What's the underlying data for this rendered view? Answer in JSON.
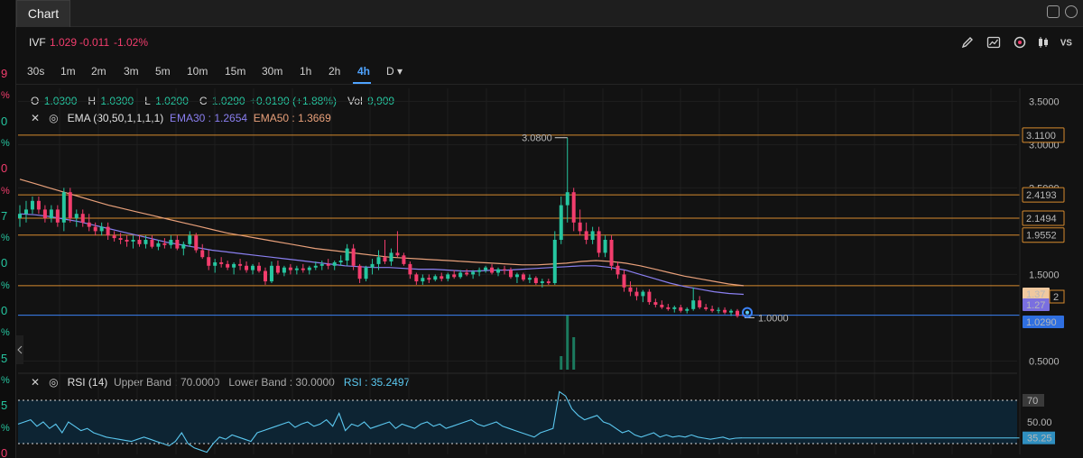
{
  "left_strip": {
    "values": [
      {
        "v": "9",
        "color": "#f23d6d"
      },
      {
        "v": "%",
        "color": "#f23d6d"
      },
      {
        "v": "0",
        "color": "#26c6a0"
      },
      {
        "v": "%",
        "color": "#26c6a0"
      },
      {
        "v": "0",
        "color": "#f23d6d"
      },
      {
        "v": "%",
        "color": "#f23d6d"
      },
      {
        "v": "7",
        "color": "#26c6a0"
      },
      {
        "v": "%",
        "color": "#26c6a0"
      },
      {
        "v": "0",
        "color": "#26c6a0"
      },
      {
        "v": "%",
        "color": "#26c6a0"
      },
      {
        "v": "0",
        "color": "#26c6a0"
      },
      {
        "v": "%",
        "color": "#26c6a0"
      },
      {
        "v": "5",
        "color": "#26c6a0"
      },
      {
        "v": "%",
        "color": "#26c6a0"
      },
      {
        "v": "5",
        "color": "#26c6a0"
      },
      {
        "v": "%",
        "color": "#26c6a0"
      },
      {
        "v": "0",
        "color": "#f23d6d"
      }
    ]
  },
  "header": {
    "title": "Chart"
  },
  "symbol": {
    "ticker": "IVF",
    "price": "1.029",
    "change": "-0.011",
    "change_pct": "-1.02%"
  },
  "timeframes": [
    "30s",
    "1m",
    "2m",
    "3m",
    "5m",
    "10m",
    "15m",
    "30m",
    "1h",
    "2h",
    "4h",
    "D"
  ],
  "active_timeframe": "4h",
  "ohlc": {
    "o_label": "O",
    "o": "1.0300",
    "h_label": "H",
    "h": "1.0300",
    "l_label": "L",
    "l": "1.0200",
    "c_label": "C",
    "c": "1.0290",
    "change": "+0.0190 (+1.88%)",
    "vol_label": "Vol",
    "vol": "9,909"
  },
  "ema_legend": {
    "name": "EMA (30,50,1,1,1,1)",
    "ema30": "EMA30 : 1.2654",
    "ema50": "EMA50 : 1.3669"
  },
  "rsi_legend": {
    "name": "RSI (14)",
    "upper": "Upper Band : 70.0000",
    "lower": "Lower Band : 30.0000",
    "value": "RSI : 35.2497"
  },
  "colors": {
    "up": "#26c6a0",
    "down": "#f23d6d",
    "ema30": "#8a7ff0",
    "ema50": "#e8a07a",
    "hline": "#d68a2e",
    "blue": "#3b82f6",
    "rsi": "#5bc8f0"
  },
  "chart_data": [
    {
      "type": "candlestick",
      "title": "IVF 4h",
      "ylim": [
        0.4,
        3.65
      ],
      "y_ticks": [
        "3.5000",
        "3.0000",
        "2.5000",
        "1.5000",
        "0.5000"
      ],
      "y_tick_values": [
        3.5,
        3.0,
        2.5,
        1.5,
        0.5
      ],
      "annotations": [
        {
          "text": "3.0800",
          "value": 3.08,
          "bar_index": 87
        },
        {
          "text": "1.0000",
          "value": 1.0,
          "bar_index": 115
        }
      ],
      "horizontal_lines": [
        {
          "label": "3.1100",
          "value": 3.11,
          "color": "#d68a2e"
        },
        {
          "label": "2.4193",
          "value": 2.4193,
          "color": "#d68a2e"
        },
        {
          "label": "2.1494",
          "value": 2.1494,
          "color": "#d68a2e"
        },
        {
          "label": "1.9552",
          "value": 1.9552,
          "color": "#d68a2e"
        },
        {
          "label": "1.37",
          "value": 1.37,
          "color": "#d68a2e"
        },
        {
          "label": "1.0290",
          "value": 1.029,
          "color": "#3b82f6"
        }
      ],
      "price_tags": [
        {
          "label": "1.37",
          "value": 1.37,
          "color": "#d68a2e"
        },
        {
          "label": "1.27",
          "value": 1.27,
          "color": "#8a7ff0"
        },
        {
          "label": "1.0290",
          "value": 1.029,
          "color": "#3b82f6"
        }
      ],
      "candles": [
        [
          2.15,
          2.3,
          2.05,
          2.2
        ],
        [
          2.2,
          2.35,
          2.1,
          2.25
        ],
        [
          2.25,
          2.4,
          2.2,
          2.35
        ],
        [
          2.35,
          2.4,
          2.2,
          2.25
        ],
        [
          2.25,
          2.3,
          2.1,
          2.15
        ],
        [
          2.15,
          2.3,
          2.1,
          2.25
        ],
        [
          2.25,
          2.3,
          2.05,
          2.1
        ],
        [
          2.1,
          2.5,
          2.0,
          2.45
        ],
        [
          2.45,
          2.5,
          2.1,
          2.15
        ],
        [
          2.15,
          2.25,
          2.05,
          2.2
        ],
        [
          2.2,
          2.25,
          2.05,
          2.1
        ],
        [
          2.1,
          2.2,
          2.0,
          2.05
        ],
        [
          2.05,
          2.1,
          1.95,
          2.0
        ],
        [
          2.0,
          2.1,
          1.95,
          2.05
        ],
        [
          2.05,
          2.1,
          1.9,
          1.95
        ],
        [
          1.95,
          2.0,
          1.88,
          1.92
        ],
        [
          1.92,
          1.98,
          1.85,
          1.9
        ],
        [
          1.9,
          1.95,
          1.82,
          1.88
        ],
        [
          1.88,
          1.95,
          1.8,
          1.9
        ],
        [
          1.9,
          1.95,
          1.82,
          1.85
        ],
        [
          1.85,
          1.95,
          1.8,
          1.9
        ],
        [
          1.9,
          1.95,
          1.8,
          1.82
        ],
        [
          1.82,
          1.9,
          1.78,
          1.86
        ],
        [
          1.86,
          1.92,
          1.8,
          1.84
        ],
        [
          1.84,
          1.95,
          1.8,
          1.9
        ],
        [
          1.9,
          1.95,
          1.78,
          1.8
        ],
        [
          1.8,
          1.88,
          1.72,
          1.85
        ],
        [
          1.85,
          2.0,
          1.82,
          1.95
        ],
        [
          1.95,
          1.98,
          1.75,
          1.78
        ],
        [
          1.78,
          1.85,
          1.68,
          1.7
        ],
        [
          1.7,
          1.78,
          1.55,
          1.6
        ],
        [
          1.6,
          1.68,
          1.52,
          1.64
        ],
        [
          1.64,
          1.7,
          1.58,
          1.62
        ],
        [
          1.62,
          1.66,
          1.55,
          1.58
        ],
        [
          1.58,
          1.64,
          1.5,
          1.62
        ],
        [
          1.62,
          1.68,
          1.55,
          1.6
        ],
        [
          1.6,
          1.65,
          1.52,
          1.55
        ],
        [
          1.55,
          1.62,
          1.5,
          1.6
        ],
        [
          1.6,
          1.64,
          1.52,
          1.54
        ],
        [
          1.54,
          1.58,
          1.38,
          1.42
        ],
        [
          1.42,
          1.65,
          1.4,
          1.6
        ],
        [
          1.6,
          1.66,
          1.5,
          1.52
        ],
        [
          1.52,
          1.6,
          1.48,
          1.58
        ],
        [
          1.58,
          1.62,
          1.5,
          1.55
        ],
        [
          1.55,
          1.6,
          1.5,
          1.57
        ],
        [
          1.57,
          1.62,
          1.52,
          1.55
        ],
        [
          1.55,
          1.6,
          1.5,
          1.58
        ],
        [
          1.58,
          1.65,
          1.55,
          1.6
        ],
        [
          1.6,
          1.66,
          1.55,
          1.62
        ],
        [
          1.62,
          1.68,
          1.56,
          1.6
        ],
        [
          1.6,
          1.66,
          1.55,
          1.64
        ],
        [
          1.64,
          1.72,
          1.6,
          1.66
        ],
        [
          1.66,
          1.85,
          1.6,
          1.8
        ],
        [
          1.8,
          1.85,
          1.55,
          1.6
        ],
        [
          1.6,
          1.62,
          1.4,
          1.45
        ],
        [
          1.45,
          1.6,
          1.42,
          1.58
        ],
        [
          1.58,
          1.68,
          1.5,
          1.62
        ],
        [
          1.62,
          1.78,
          1.55,
          1.7
        ],
        [
          1.7,
          1.9,
          1.62,
          1.65
        ],
        [
          1.65,
          1.8,
          1.6,
          1.75
        ],
        [
          1.75,
          2.0,
          1.7,
          1.72
        ],
        [
          1.72,
          1.75,
          1.6,
          1.62
        ],
        [
          1.62,
          1.65,
          1.45,
          1.5
        ],
        [
          1.5,
          1.52,
          1.38,
          1.42
        ],
        [
          1.42,
          1.5,
          1.38,
          1.46
        ],
        [
          1.46,
          1.5,
          1.4,
          1.44
        ],
        [
          1.44,
          1.5,
          1.42,
          1.48
        ],
        [
          1.48,
          1.52,
          1.42,
          1.45
        ],
        [
          1.45,
          1.52,
          1.42,
          1.5
        ],
        [
          1.5,
          1.55,
          1.45,
          1.47
        ],
        [
          1.47,
          1.55,
          1.45,
          1.52
        ],
        [
          1.52,
          1.56,
          1.48,
          1.5
        ],
        [
          1.5,
          1.55,
          1.45,
          1.53
        ],
        [
          1.53,
          1.58,
          1.48,
          1.55
        ],
        [
          1.55,
          1.6,
          1.52,
          1.58
        ],
        [
          1.58,
          1.62,
          1.5,
          1.52
        ],
        [
          1.52,
          1.58,
          1.48,
          1.56
        ],
        [
          1.56,
          1.6,
          1.5,
          1.55
        ],
        [
          1.55,
          1.58,
          1.45,
          1.47
        ],
        [
          1.47,
          1.52,
          1.4,
          1.5
        ],
        [
          1.5,
          1.52,
          1.42,
          1.44
        ],
        [
          1.44,
          1.5,
          1.4,
          1.46
        ],
        [
          1.46,
          1.48,
          1.38,
          1.4
        ],
        [
          1.4,
          1.45,
          1.35,
          1.42
        ],
        [
          1.42,
          1.45,
          1.38,
          1.4
        ],
        [
          1.4,
          2.0,
          1.38,
          1.9
        ],
        [
          1.9,
          2.4,
          1.85,
          2.3
        ],
        [
          2.3,
          3.08,
          2.1,
          2.45
        ],
        [
          2.45,
          2.5,
          2.0,
          2.1
        ],
        [
          2.1,
          2.25,
          1.95,
          2.0
        ],
        [
          2.0,
          2.1,
          1.85,
          1.9
        ],
        [
          1.9,
          2.05,
          1.85,
          2.0
        ],
        [
          2.0,
          2.05,
          1.7,
          1.75
        ],
        [
          1.75,
          1.95,
          1.7,
          1.9
        ],
        [
          1.9,
          1.95,
          1.55,
          1.6
        ],
        [
          1.6,
          1.65,
          1.45,
          1.5
        ],
        [
          1.5,
          1.55,
          1.3,
          1.35
        ],
        [
          1.35,
          1.42,
          1.25,
          1.3
        ],
        [
          1.3,
          1.35,
          1.2,
          1.25
        ],
        [
          1.25,
          1.32,
          1.18,
          1.3
        ],
        [
          1.3,
          1.33,
          1.15,
          1.18
        ],
        [
          1.18,
          1.22,
          1.12,
          1.15
        ],
        [
          1.15,
          1.2,
          1.1,
          1.12
        ],
        [
          1.12,
          1.16,
          1.08,
          1.1
        ],
        [
          1.1,
          1.14,
          1.06,
          1.12
        ],
        [
          1.12,
          1.15,
          1.06,
          1.08
        ],
        [
          1.08,
          1.12,
          1.05,
          1.1
        ],
        [
          1.1,
          1.35,
          1.08,
          1.2
        ],
        [
          1.2,
          1.25,
          1.1,
          1.12
        ],
        [
          1.12,
          1.16,
          1.08,
          1.1
        ],
        [
          1.1,
          1.14,
          1.06,
          1.08
        ],
        [
          1.08,
          1.12,
          1.05,
          1.09
        ],
        [
          1.09,
          1.12,
          1.04,
          1.06
        ],
        [
          1.06,
          1.1,
          1.02,
          1.08
        ],
        [
          1.08,
          1.1,
          1.0,
          1.02
        ],
        [
          1.03,
          1.03,
          1.02,
          1.029
        ]
      ],
      "ema30": [
        2.2,
        2.19,
        2.17,
        2.14,
        2.11,
        2.07,
        2.03,
        1.99,
        1.95,
        1.91,
        1.87,
        1.84,
        1.81,
        1.78,
        1.76,
        1.74,
        1.72,
        1.7,
        1.68,
        1.66,
        1.64,
        1.62,
        1.6,
        1.59,
        1.58,
        1.58,
        1.57,
        1.56,
        1.56,
        1.55,
        1.54,
        1.54,
        1.55,
        1.55,
        1.56,
        1.57,
        1.58,
        1.59,
        1.6,
        1.6,
        1.58,
        1.55,
        1.5,
        1.45,
        1.4,
        1.36,
        1.33,
        1.3,
        1.28,
        1.27
      ],
      "ema50": [
        2.6,
        2.55,
        2.5,
        2.45,
        2.4,
        2.35,
        2.3,
        2.26,
        2.22,
        2.18,
        2.14,
        2.1,
        2.06,
        2.02,
        1.98,
        1.95,
        1.92,
        1.89,
        1.86,
        1.83,
        1.8,
        1.78,
        1.76,
        1.74,
        1.72,
        1.7,
        1.69,
        1.68,
        1.67,
        1.66,
        1.65,
        1.64,
        1.63,
        1.62,
        1.61,
        1.61,
        1.62,
        1.63,
        1.65,
        1.66,
        1.65,
        1.63,
        1.6,
        1.56,
        1.52,
        1.48,
        1.45,
        1.42,
        1.39,
        1.37
      ],
      "volume_bars": [
        {
          "bar_index": 87,
          "value": 1.0
        },
        {
          "bar_index": 88,
          "value": 0.6
        },
        {
          "bar_index": 86,
          "value": 0.25
        }
      ]
    },
    {
      "type": "line",
      "title": "RSI (14)",
      "ylim": [
        20,
        80
      ],
      "y_ticks": [
        "70",
        "50.00",
        "35.25"
      ],
      "y_tick_values": [
        70,
        50,
        35.25
      ],
      "upper_band": 70,
      "lower_band": 30,
      "values": [
        48,
        50,
        52,
        46,
        50,
        44,
        48,
        40,
        50,
        46,
        42,
        44,
        40,
        38,
        36,
        35,
        34,
        33,
        32,
        34,
        36,
        34,
        32,
        30,
        28,
        32,
        40,
        30,
        26,
        24,
        22,
        30,
        36,
        34,
        38,
        36,
        34,
        32,
        40,
        42,
        44,
        46,
        48,
        50,
        45,
        48,
        50,
        46,
        48,
        52,
        46,
        58,
        42,
        48,
        46,
        50,
        44,
        46,
        48,
        50,
        44,
        48,
        46,
        44,
        48,
        50,
        46,
        48,
        44,
        46,
        48,
        50,
        52,
        48,
        46,
        48,
        50,
        46,
        44,
        42,
        40,
        38,
        36,
        40,
        42,
        44,
        78,
        74,
        62,
        56,
        52,
        54,
        56,
        50,
        48,
        44,
        40,
        42,
        38,
        36,
        38,
        40,
        36,
        38,
        36,
        37,
        36,
        38,
        36,
        35,
        34,
        35,
        36,
        34,
        35,
        35.25
      ]
    }
  ]
}
